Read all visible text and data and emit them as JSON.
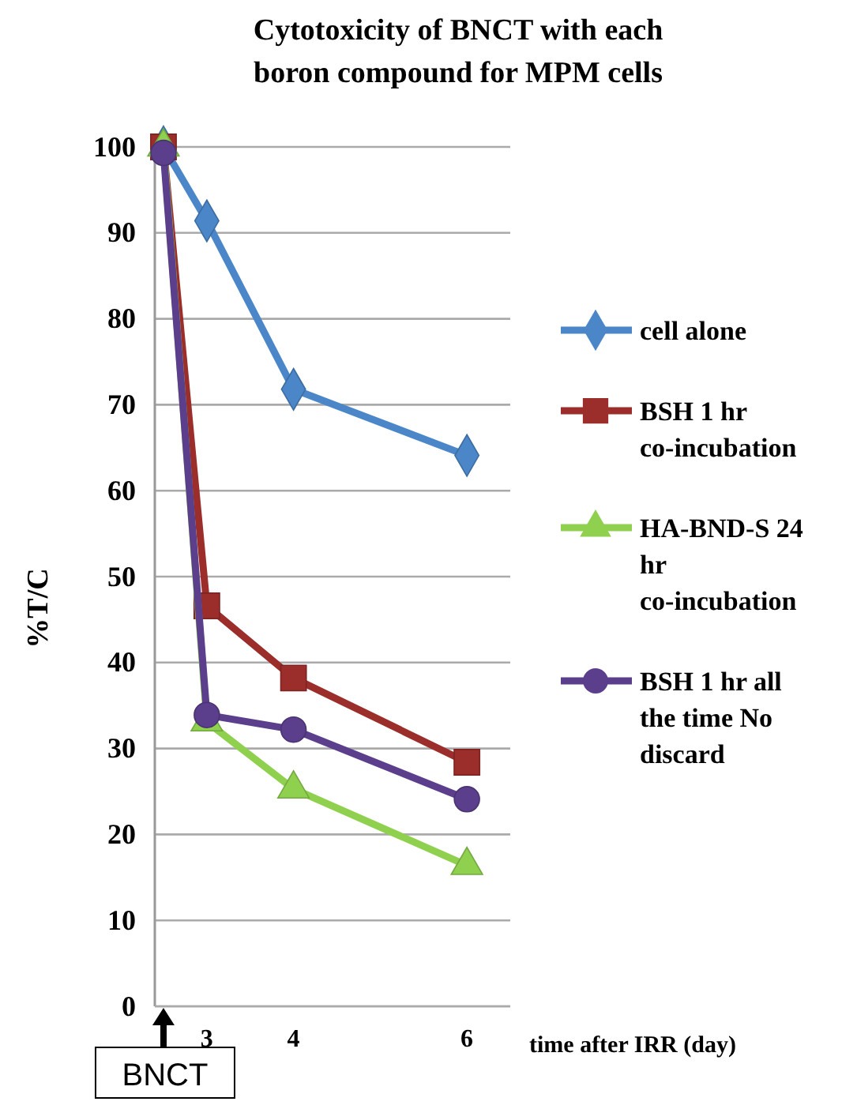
{
  "chart_data": {
    "type": "line",
    "title": "Cytotoxicity of BNCT with each boron compound for MPM cells",
    "xlabel": "time after IRR (day)",
    "ylabel": "%T/C",
    "x": [
      2.5,
      3,
      4,
      6
    ],
    "xlim": [
      2.4,
      6.5
    ],
    "xticks": [
      3,
      4,
      6
    ],
    "ylim": [
      0,
      100
    ],
    "yticks": [
      0,
      10,
      20,
      30,
      40,
      50,
      60,
      70,
      80,
      90,
      100
    ],
    "grid": "y",
    "legend": "right",
    "annotations": [
      "BNCT"
    ],
    "series": [
      {
        "name": "cell alone",
        "color": "#4a86c8",
        "marker": "diamond",
        "values": [
          100,
          91.4,
          71.8,
          64.1
        ]
      },
      {
        "name": "BSH 1 hr co-incubation",
        "color": "#9b2d2a",
        "marker": "square",
        "values": [
          100,
          46.6,
          38.2,
          28.4
        ]
      },
      {
        "name": "HA-BND-S 24 hr co-incubation",
        "color": "#8fd14f",
        "marker": "triangle",
        "values": [
          100,
          33.1,
          25.3,
          16.4
        ]
      },
      {
        "name": "BSH 1 hr all the time No discard",
        "color": "#5b3f8c",
        "marker": "circle",
        "values": [
          99.3,
          33.9,
          32.2,
          24.1
        ]
      }
    ]
  }
}
